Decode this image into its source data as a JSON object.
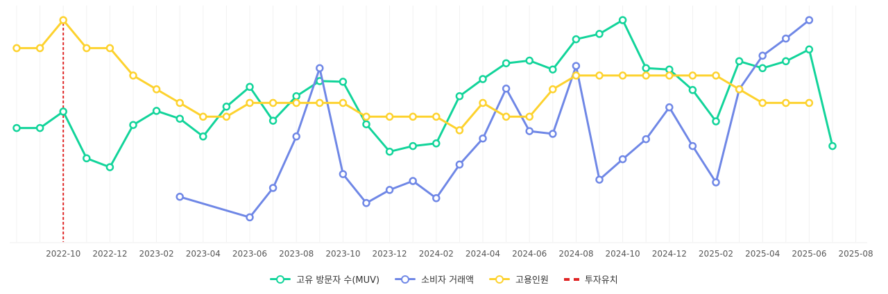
{
  "chart_data": {
    "type": "line",
    "x": [
      "2022-08",
      "2022-09",
      "2022-10",
      "2022-11",
      "2022-12",
      "2023-01",
      "2023-02",
      "2023-03",
      "2023-04",
      "2023-05",
      "2023-06",
      "2023-07",
      "2023-08",
      "2023-09",
      "2023-10",
      "2023-11",
      "2023-12",
      "2024-01",
      "2024-02",
      "2024-03",
      "2024-04",
      "2024-05",
      "2024-06",
      "2024-07",
      "2024-08",
      "2024-09",
      "2024-10",
      "2024-11",
      "2024-12",
      "2025-01",
      "2025-02",
      "2025-03",
      "2025-04",
      "2025-05",
      "2025-06",
      "2025-07",
      "2025-08"
    ],
    "tick_labels": [
      "2022-10",
      "2022-12",
      "2023-02",
      "2023-04",
      "2023-06",
      "2023-08",
      "2023-10",
      "2023-12",
      "2024-02",
      "2024-04",
      "2024-06",
      "2024-08",
      "2024-10",
      "2024-12",
      "2025-02",
      "2025-04",
      "2025-06",
      "2025-08"
    ],
    "ylim": [
      0,
      100
    ],
    "series": [
      {
        "name": "고유 방문자 수(MUV)",
        "color": "#12d49a",
        "values": [
          51.2,
          51.2,
          58.6,
          37.6,
          33.6,
          52.6,
          58.9,
          55.4,
          47.4,
          60.8,
          69.7,
          54.5,
          65.5,
          72.3,
          72,
          52.9,
          40.6,
          43.1,
          44.3,
          65.5,
          73.2,
          80.3,
          81.5,
          77.5,
          91.1,
          93.5,
          99.7,
          78.1,
          77.5,
          68.3,
          54.2,
          81.2,
          78.1,
          81.2,
          86.5,
          43.1,
          null
        ]
      },
      {
        "name": "소비자 거래액",
        "color": "#6f87e6",
        "values": [
          null,
          null,
          null,
          null,
          null,
          null,
          null,
          20.3,
          null,
          null,
          11.1,
          24.3,
          47.4,
          78.1,
          30.5,
          17.5,
          23.4,
          27.4,
          19.7,
          34.8,
          46.5,
          68.9,
          49.8,
          48.6,
          79.1,
          28,
          37.2,
          46.2,
          60.5,
          43.1,
          26.8,
          68.6,
          83.7,
          91.4,
          99.7,
          null,
          null
        ]
      },
      {
        "name": "고용인원",
        "color": "#fdd22e",
        "values": [
          87.1,
          87.1,
          99.7,
          87.1,
          87.1,
          74.8,
          68.6,
          62.5,
          56.3,
          56.3,
          62.5,
          62.5,
          62.5,
          62.5,
          62.5,
          56.3,
          56.3,
          56.3,
          56.3,
          50.2,
          62.5,
          56.3,
          56.3,
          68.6,
          74.8,
          74.8,
          74.8,
          74.8,
          74.8,
          74.8,
          74.8,
          68.6,
          62.5,
          62.5,
          62.5,
          null,
          null
        ]
      }
    ],
    "annotations": [
      {
        "name": "투자유치",
        "x": "2022-10",
        "color": "#e02424",
        "style": "dashed"
      }
    ],
    "legend": [
      {
        "label": "고유 방문자 수(MUV)",
        "color": "#12d49a",
        "marker": "line-circle"
      },
      {
        "label": "소비자 거래액",
        "color": "#6f87e6",
        "marker": "line-circle"
      },
      {
        "label": "고용인원",
        "color": "#fdd22e",
        "marker": "line-circle"
      },
      {
        "label": "투자유치",
        "color": "#e02424",
        "marker": "dashed"
      }
    ],
    "grid": "vertical",
    "legend_position": "bottom-center",
    "title": "",
    "xlabel": "",
    "ylabel": ""
  }
}
